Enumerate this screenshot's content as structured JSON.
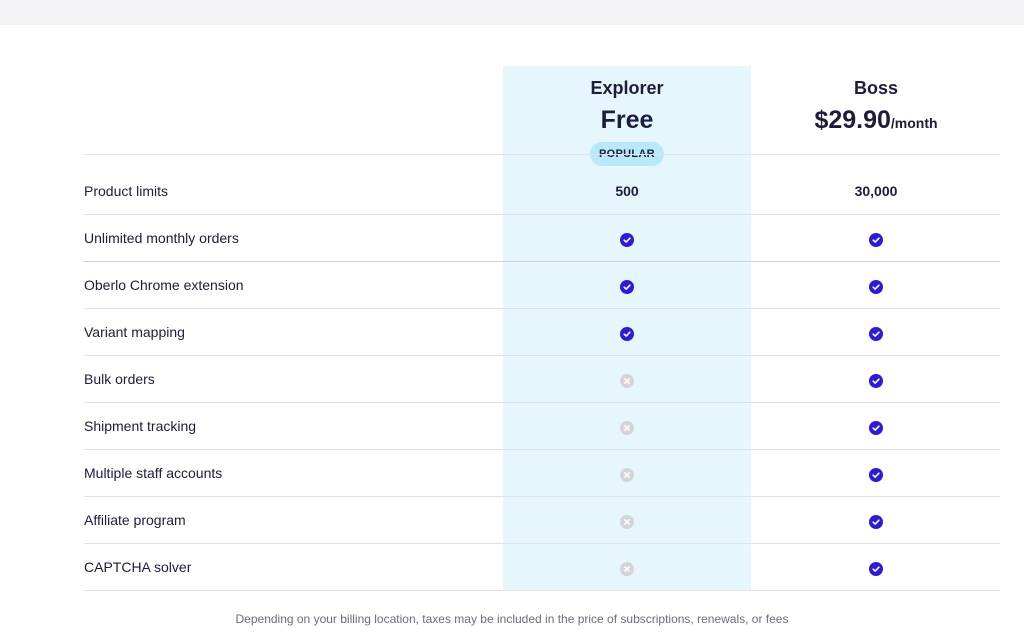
{
  "plans": [
    {
      "name": "Explorer",
      "price": "Free",
      "price_suffix": "",
      "badge": "POPULAR",
      "highlighted": true
    },
    {
      "name": "Boss",
      "price": "$29.90",
      "price_suffix": "/month",
      "badge": "",
      "highlighted": false
    }
  ],
  "features": [
    {
      "label": "Product limits",
      "explorer": "500",
      "boss": "30,000"
    },
    {
      "label": "Unlimited monthly orders",
      "explorer": "check",
      "boss": "check"
    },
    {
      "label": "Oberlo Chrome extension",
      "explorer": "check",
      "boss": "check"
    },
    {
      "label": "Variant mapping",
      "explorer": "check",
      "boss": "check"
    },
    {
      "label": "Bulk orders",
      "explorer": "cross",
      "boss": "check"
    },
    {
      "label": "Shipment tracking",
      "explorer": "cross",
      "boss": "check"
    },
    {
      "label": "Multiple staff accounts",
      "explorer": "cross",
      "boss": "check"
    },
    {
      "label": "Affiliate program",
      "explorer": "cross",
      "boss": "check"
    },
    {
      "label": "CAPTCHA solver",
      "explorer": "cross",
      "boss": "check"
    }
  ],
  "footnote": "Depending on your billing location, taxes may be included in the price of subscriptions, renewals, or fees",
  "colors": {
    "check": "#2c1bdc",
    "cross": "#d4d4d9",
    "highlight_column": "#e6f6fd",
    "badge": "#b7e9fb",
    "text": "#1d1c3a"
  },
  "icons": {
    "included": "check-circle-icon",
    "not_included": "x-circle-icon"
  }
}
